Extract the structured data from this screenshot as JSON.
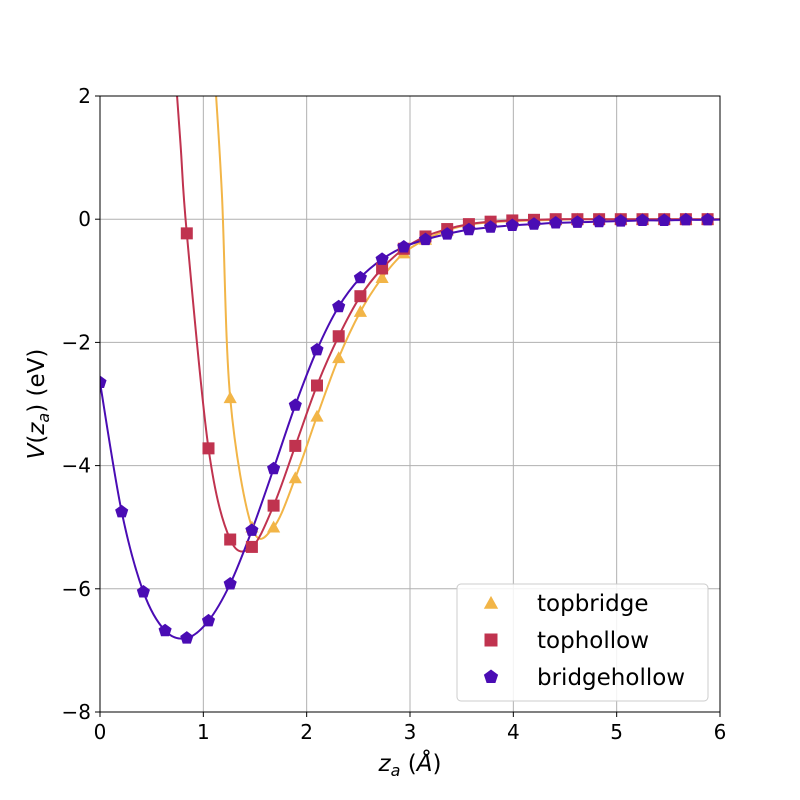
{
  "chart_data": {
    "type": "line",
    "xlabel": "z_a (Å)",
    "ylabel": "V(z_a) (eV)",
    "xlim": [
      0,
      6
    ],
    "ylim": [
      -8,
      2
    ],
    "xticks": [
      0,
      1,
      2,
      3,
      4,
      5,
      6
    ],
    "yticks": [
      -8,
      -6,
      -4,
      -2,
      0,
      2
    ],
    "xtick_labels": [
      "0",
      "1",
      "2",
      "3",
      "4",
      "5",
      "6"
    ],
    "ytick_labels": [
      "−8",
      "−6",
      "−4",
      "−2",
      "0",
      "2"
    ],
    "grid": true,
    "legend_position": "bottom-right",
    "series": [
      {
        "name": "topbridge",
        "color": "#f2b547",
        "marker": "triangle",
        "x": [
          1.26,
          1.47,
          1.68,
          1.89,
          2.1,
          2.31,
          2.52,
          2.73,
          2.94,
          3.15,
          3.36,
          3.57,
          3.78,
          3.99,
          4.2,
          4.41,
          4.62,
          4.83,
          5.04,
          5.25,
          5.46,
          5.67,
          5.88
        ],
        "y": [
          -2.9,
          -5.0,
          -5.0,
          -4.2,
          -3.2,
          -2.25,
          -1.5,
          -0.95,
          -0.55,
          -0.33,
          -0.18,
          -0.09,
          -0.05,
          -0.03,
          -0.02,
          -0.01,
          0.0,
          0.0,
          0.0,
          0.0,
          0.0,
          0.0,
          0.0
        ]
      },
      {
        "name": "tophollow",
        "color": "#c0334f",
        "marker": "square",
        "x": [
          0.84,
          1.05,
          1.26,
          1.47,
          1.68,
          1.89,
          2.1,
          2.31,
          2.52,
          2.73,
          2.94,
          3.15,
          3.36,
          3.57,
          3.78,
          3.99,
          4.2,
          4.41,
          4.62,
          4.83,
          5.04,
          5.25,
          5.46,
          5.67,
          5.88
        ],
        "y": [
          -0.23,
          -3.72,
          -5.2,
          -5.32,
          -4.65,
          -3.68,
          -2.7,
          -1.9,
          -1.25,
          -0.8,
          -0.48,
          -0.28,
          -0.16,
          -0.08,
          -0.04,
          -0.02,
          -0.01,
          0.0,
          0.0,
          0.0,
          0.0,
          0.0,
          0.0,
          0.0,
          0.0
        ]
      },
      {
        "name": "bridgehollow",
        "color": "#4a0cb4",
        "marker": "pentagon",
        "x": [
          0.0,
          0.21,
          0.42,
          0.63,
          0.84,
          1.05,
          1.26,
          1.47,
          1.68,
          1.89,
          2.1,
          2.31,
          2.52,
          2.73,
          2.94,
          3.15,
          3.36,
          3.57,
          3.78,
          3.99,
          4.2,
          4.41,
          4.62,
          4.83,
          5.04,
          5.25,
          5.46,
          5.67,
          5.88
        ],
        "y": [
          -2.65,
          -4.75,
          -6.05,
          -6.68,
          -6.8,
          -6.52,
          -5.92,
          -5.05,
          -4.05,
          -3.02,
          -2.12,
          -1.42,
          -0.95,
          -0.65,
          -0.45,
          -0.33,
          -0.24,
          -0.17,
          -0.13,
          -0.1,
          -0.08,
          -0.06,
          -0.05,
          -0.04,
          -0.03,
          -0.02,
          -0.02,
          -0.01,
          -0.01
        ]
      }
    ]
  }
}
